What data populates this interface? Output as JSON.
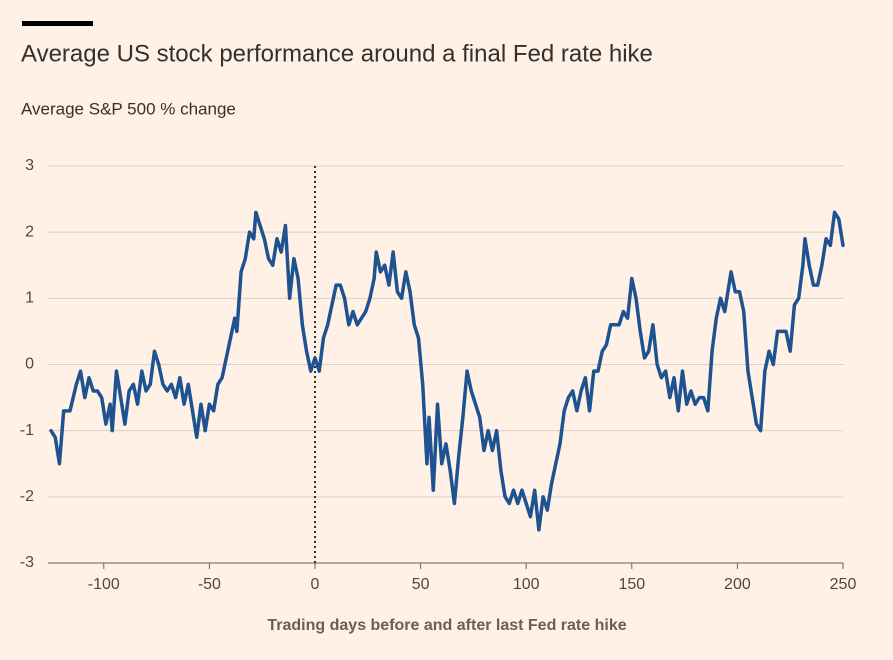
{
  "chart_data": {
    "type": "line",
    "title": "Average US stock performance around a final Fed rate hike",
    "subtitle": "Average S&P 500 % change",
    "x_label": "Trading days before and after last Fed rate hike",
    "x": [
      -125,
      -123,
      -121,
      -119,
      -116,
      -113,
      -111,
      -109,
      -107,
      -105,
      -103,
      -101,
      -99,
      -97,
      -96,
      -94,
      -92,
      -90,
      -88,
      -86,
      -84,
      -82,
      -80,
      -78,
      -76,
      -74,
      -72,
      -70,
      -68,
      -66,
      -64,
      -62,
      -60,
      -58,
      -56,
      -54,
      -52,
      -50,
      -48,
      -46,
      -44,
      -42,
      -40,
      -38,
      -37,
      -35,
      -33,
      -31,
      -29,
      -28,
      -26,
      -24,
      -22,
      -20,
      -18,
      -16,
      -14,
      -12,
      -10,
      -8,
      -6,
      -4,
      -2,
      0,
      2,
      4,
      6,
      8,
      10,
      12,
      14,
      16,
      18,
      20,
      22,
      24,
      26,
      28,
      29,
      31,
      33,
      35,
      37,
      39,
      41,
      43,
      45,
      47,
      49,
      51,
      53,
      54,
      56,
      58,
      60,
      62,
      64,
      66,
      68,
      70,
      72,
      74,
      76,
      78,
      80,
      82,
      84,
      86,
      88,
      90,
      92,
      94,
      96,
      98,
      100,
      102,
      104,
      106,
      108,
      110,
      112,
      114,
      116,
      118,
      120,
      122,
      124,
      126,
      128,
      130,
      132,
      134,
      136,
      138,
      140,
      142,
      144,
      146,
      148,
      150,
      152,
      154,
      156,
      158,
      160,
      162,
      164,
      166,
      168,
      170,
      172,
      174,
      176,
      178,
      180,
      182,
      184,
      186,
      188,
      190,
      192,
      194,
      196,
      197,
      199,
      201,
      203,
      205,
      207,
      209,
      211,
      213,
      215,
      217,
      219,
      221,
      223,
      225,
      227,
      229,
      231,
      232,
      234,
      236,
      238,
      240,
      242,
      244,
      246,
      248,
      250
    ],
    "series": [
      {
        "name": "Average S&P 500 % change",
        "color": "#1f5291",
        "values": [
          -1.0,
          -1.1,
          -1.5,
          -0.7,
          -0.7,
          -0.3,
          -0.1,
          -0.5,
          -0.2,
          -0.4,
          -0.4,
          -0.5,
          -0.9,
          -0.6,
          -1.0,
          -0.1,
          -0.5,
          -0.9,
          -0.4,
          -0.3,
          -0.6,
          -0.1,
          -0.4,
          -0.3,
          0.2,
          0.0,
          -0.3,
          -0.4,
          -0.3,
          -0.5,
          -0.2,
          -0.6,
          -0.3,
          -0.7,
          -1.1,
          -0.6,
          -1.0,
          -0.6,
          -0.7,
          -0.3,
          -0.2,
          0.1,
          0.4,
          0.7,
          0.5,
          1.4,
          1.6,
          2.0,
          1.9,
          2.3,
          2.1,
          1.9,
          1.6,
          1.5,
          1.9,
          1.7,
          2.1,
          1.0,
          1.6,
          1.3,
          0.6,
          0.2,
          -0.1,
          0.1,
          -0.1,
          0.4,
          0.6,
          0.9,
          1.2,
          1.2,
          1.0,
          0.6,
          0.8,
          0.6,
          0.7,
          0.8,
          1.0,
          1.3,
          1.7,
          1.4,
          1.5,
          1.2,
          1.7,
          1.1,
          1.0,
          1.4,
          1.1,
          0.6,
          0.4,
          -0.3,
          -1.5,
          -0.8,
          -1.9,
          -0.6,
          -1.5,
          -1.2,
          -1.6,
          -2.1,
          -1.4,
          -0.8,
          -0.1,
          -0.4,
          -0.6,
          -0.8,
          -1.3,
          -1.0,
          -1.3,
          -1.0,
          -1.6,
          -2.0,
          -2.1,
          -1.9,
          -2.1,
          -1.9,
          -2.1,
          -2.3,
          -1.9,
          -2.5,
          -2.0,
          -2.2,
          -1.8,
          -1.5,
          -1.2,
          -0.7,
          -0.5,
          -0.4,
          -0.7,
          -0.4,
          -0.2,
          -0.7,
          -0.1,
          -0.1,
          0.2,
          0.3,
          0.6,
          0.6,
          0.6,
          0.8,
          0.7,
          1.3,
          1.0,
          0.5,
          0.1,
          0.2,
          0.6,
          0.0,
          -0.2,
          -0.1,
          -0.5,
          -0.2,
          -0.7,
          -0.1,
          -0.6,
          -0.4,
          -0.6,
          -0.5,
          -0.5,
          -0.7,
          0.2,
          0.7,
          1.0,
          0.8,
          1.2,
          1.4,
          1.1,
          1.1,
          0.8,
          -0.1,
          -0.5,
          -0.9,
          -1.0,
          -0.1,
          0.2,
          0.0,
          0.5,
          0.5,
          0.5,
          0.2,
          0.9,
          1.0,
          1.5,
          1.9,
          1.5,
          1.2,
          1.2,
          1.5,
          1.9,
          1.8,
          2.3,
          2.2,
          1.8
        ]
      }
    ],
    "xlim": [
      -125,
      250
    ],
    "xticks": [
      -100,
      -50,
      0,
      50,
      100,
      150,
      200,
      250
    ],
    "ylim": [
      -3,
      3
    ],
    "yticks": [
      -3,
      -2,
      -1,
      0,
      1,
      2,
      3
    ],
    "grid": true,
    "reference_line_x": 0
  }
}
